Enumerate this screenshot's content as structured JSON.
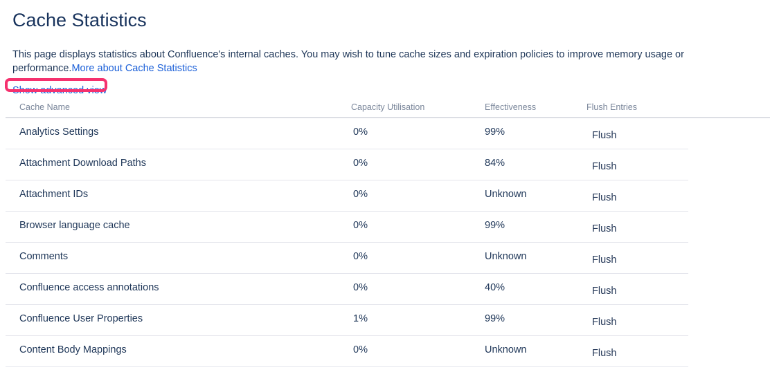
{
  "page": {
    "title": "Cache Statistics",
    "intro_text": "This page displays statistics about Confluence's internal caches. You may wish to tune cache sizes and expiration policies to improve memory usage or performance.",
    "intro_link_text": "More about Cache Statistics",
    "advanced_view_label": "Show advanced view"
  },
  "colors": {
    "text_dark": "#1d3557",
    "link_blue": "#1a5fd8",
    "column_header_gray": "#7a869a",
    "annotation_highlight_pink": "#f5316e",
    "row_divider": "#e4e5ec"
  },
  "table": {
    "columns": [
      "Cache Name",
      "Capacity Utilisation",
      "Effectiveness",
      "Flush Entries"
    ],
    "flush_action_label": "Flush",
    "rows": [
      {
        "name": "Analytics Settings",
        "capacity_utilisation": "0%",
        "effectiveness": "99%"
      },
      {
        "name": "Attachment Download Paths",
        "capacity_utilisation": "0%",
        "effectiveness": "84%"
      },
      {
        "name": "Attachment IDs",
        "capacity_utilisation": "0%",
        "effectiveness": "Unknown"
      },
      {
        "name": "Browser language cache",
        "capacity_utilisation": "0%",
        "effectiveness": "99%"
      },
      {
        "name": "Comments",
        "capacity_utilisation": "0%",
        "effectiveness": "Unknown"
      },
      {
        "name": "Confluence access annotations",
        "capacity_utilisation": "0%",
        "effectiveness": "40%"
      },
      {
        "name": "Confluence User Properties",
        "capacity_utilisation": "1%",
        "effectiveness": "99%"
      },
      {
        "name": "Content Body Mappings",
        "capacity_utilisation": "0%",
        "effectiveness": "Unknown"
      }
    ]
  }
}
